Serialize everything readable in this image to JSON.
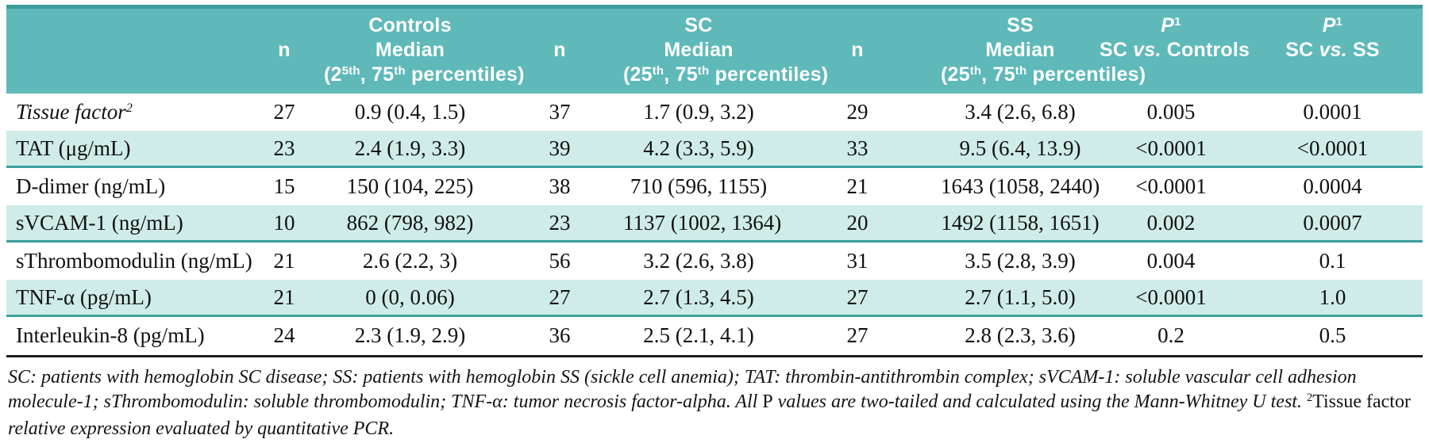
{
  "colors": {
    "header_teal": "#5fb9b9",
    "header_teal_dark": "#3d9c9c",
    "row_shade": "#cfece9",
    "row_rule": "#3ca0a0",
    "text": "#111111"
  },
  "table": {
    "header": {
      "n": "n",
      "median": "Median",
      "groups": [
        {
          "name": "Controls",
          "pct": {
            "pre": "(2",
            "sup1": "5th",
            "mid": ", 75",
            "sup2": "th",
            "post": " percentiles)"
          }
        },
        {
          "name": "SC",
          "pct": {
            "pre": "(25",
            "sup1": "th",
            "mid": ", 75",
            "sup2": "th",
            "post": " percentiles)"
          }
        },
        {
          "name": "SS",
          "pct": {
            "pre": "(25",
            "sup1": "th",
            "mid": ", 75",
            "sup2": "th",
            "post": " percentiles)"
          }
        }
      ],
      "p_cols": [
        {
          "symbol": "P",
          "sup": "1",
          "pre": "SC ",
          "vs": "vs.",
          "post": " Controls"
        },
        {
          "symbol": "P",
          "sup": "1",
          "pre": "SC ",
          "vs": "vs.",
          "post": " SS"
        }
      ]
    },
    "rows": [
      {
        "label": "Tissue factor",
        "label_sup": "2",
        "label_italic": true,
        "shaded": false,
        "n1": "27",
        "m1": "0.9 (0.4, 1.5)",
        "n2": "37",
        "m2": "1.7 (0.9, 3.2)",
        "n3": "29",
        "m3": "3.4 (2.6, 6.8)",
        "p1": "0.005",
        "p2": "0.0001"
      },
      {
        "label": "TAT (μg/mL)",
        "label_sup": "",
        "label_italic": false,
        "shaded": true,
        "n1": "23",
        "m1": "2.4 (1.9, 3.3)",
        "n2": "39",
        "m2": "4.2 (3.3, 5.9)",
        "n3": "33",
        "m3": "9.5 (6.4, 13.9)",
        "p1": "<0.0001",
        "p2": "<0.0001"
      },
      {
        "label": "D-dimer (ng/mL)",
        "label_sup": "",
        "label_italic": false,
        "shaded": false,
        "n1": "15",
        "m1": "150 (104, 225)",
        "n2": "38",
        "m2": "710 (596, 1155)",
        "n3": "21",
        "m3": "1643 (1058, 2440)",
        "p1": "<0.0001",
        "p2": "0.0004"
      },
      {
        "label": "sVCAM-1 (ng/mL)",
        "label_sup": "",
        "label_italic": false,
        "shaded": true,
        "n1": "10",
        "m1": "862 (798, 982)",
        "n2": "23",
        "m2": "1137 (1002, 1364)",
        "n3": "20",
        "m3": "1492 (1158, 1651)",
        "p1": "0.002",
        "p2": "0.0007"
      },
      {
        "label": "sThrombomodulin (ng/mL)",
        "label_sup": "",
        "label_italic": false,
        "shaded": false,
        "n1": "21",
        "m1": "2.6 (2.2, 3)",
        "n2": "56",
        "m2": "3.2 (2.6, 3.8)",
        "n3": "31",
        "m3": "3.5 (2.8, 3.9)",
        "p1": "0.004",
        "p2": "0.1"
      },
      {
        "label": "TNF-α (pg/mL)",
        "label_sup": "",
        "label_italic": false,
        "shaded": true,
        "n1": "21",
        "m1": "0 (0, 0.06)",
        "n2": "27",
        "m2": "2.7 (1.3, 4.5)",
        "n3": "27",
        "m3": "2.7 (1.1, 5.0)",
        "p1": "<0.0001",
        "p2": "1.0"
      },
      {
        "label": "Interleukin-8 (pg/mL)",
        "label_sup": "",
        "label_italic": false,
        "shaded": false,
        "n1": "24",
        "m1": "2.3 (1.9, 2.9)",
        "n2": "36",
        "m2": "2.5 (2.1, 4.1)",
        "n3": "27",
        "m3": "2.8 (2.3, 3.6)",
        "p1": "0.2",
        "p2": "0.5"
      }
    ]
  },
  "footnote": {
    "parts": [
      {
        "text": "SC: patients with hemoglobin SC disease; SS: patients with hemoglobin SS (sickle cell anemia); TAT: thrombin-antithrombin complex; sVCAM-1: soluble vascular cell adhesion molecule-1; sThrombomodulin: soluble thrombomodulin; TNF-α: tumor necrosis factor-alpha. All ",
        "style": "italic"
      },
      {
        "text": "P",
        "style": "roman"
      },
      {
        "text": " values are two-tailed and calculated using the Mann-Whitney U test. ",
        "style": "italic"
      },
      {
        "text": "2",
        "style": "roman_sup"
      },
      {
        "text": "Tissue factor",
        "style": "roman"
      },
      {
        "text": " relative expression evaluated by quantitative PCR.",
        "style": "italic"
      }
    ]
  }
}
